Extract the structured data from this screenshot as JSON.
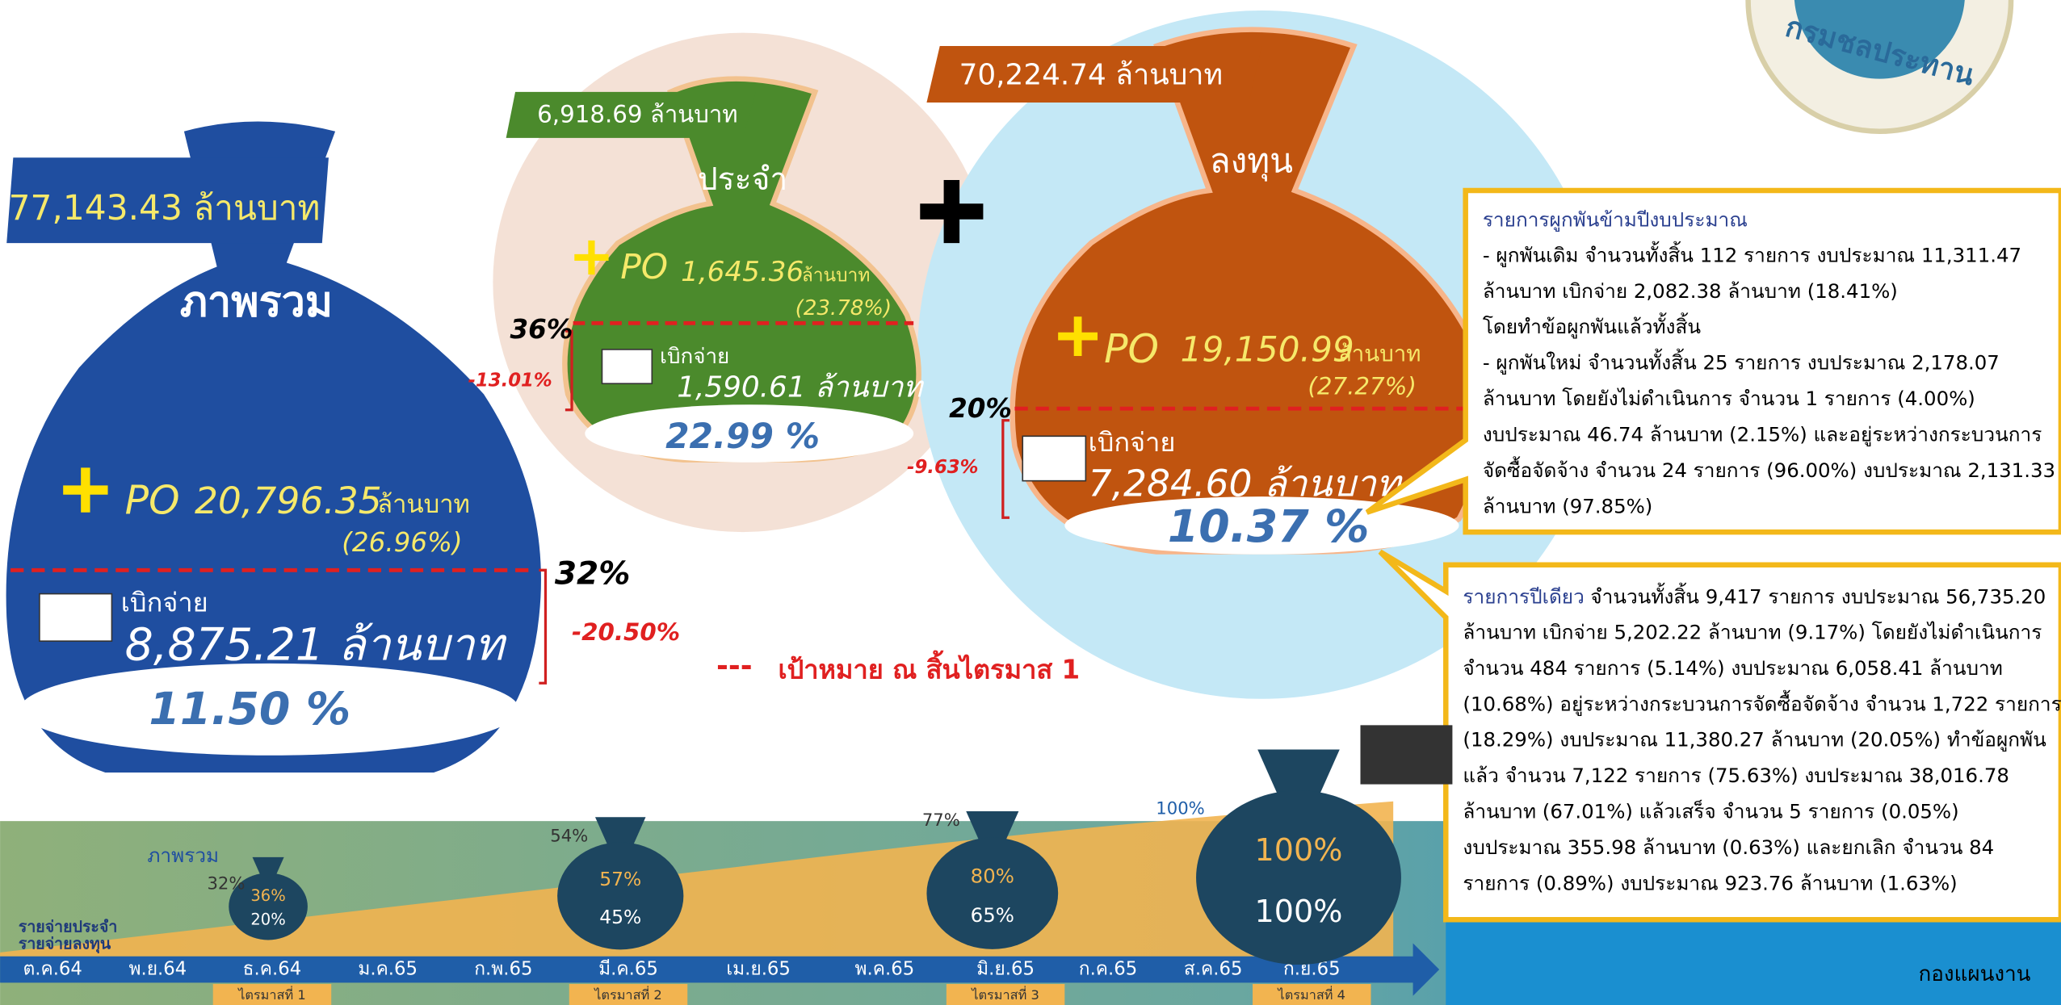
{
  "logo_text": "กรมชลประทาน",
  "overall": {
    "amount": "77,143.43 ล้านบาท",
    "label": "ภาพรวม",
    "po": "PO",
    "po_amount": "20,796.35",
    "po_unit": "ล้านบาท",
    "po_pct": "(26.96%)",
    "disburse_label": "เบิกจ่าย",
    "disburse_amount": "8,875.21 ล้านบาท",
    "disburse_pct": "11.50 %",
    "target": "32%",
    "gap": "-20.50%"
  },
  "regular": {
    "amount": "6,918.69  ล้านบาท",
    "label": "ประจำ",
    "po": "PO",
    "po_amount": "1,645.36",
    "po_unit": "ล้านบาท",
    "po_pct": "(23.78%)",
    "disburse_label": "เบิกจ่าย",
    "disburse_amount": "1,590.61 ล้านบาท",
    "disburse_pct": "22.99 %",
    "target": "36%",
    "gap": "-13.01%"
  },
  "investment": {
    "amount": "70,224.74 ล้านบาท",
    "label": "ลงทุน",
    "po": "PO",
    "po_amount": "19,150.99",
    "po_unit": "ล้านบาท",
    "po_pct": "(27.27%)",
    "disburse_label": "เบิกจ่าย",
    "disburse_amount": "7,284.60 ล้านบาท",
    "disburse_pct": "10.37 %",
    "target": "20%",
    "gap": "-9.63%"
  },
  "legend": {
    "symbol": "---",
    "text": "เป้าหมาย ณ สิ้นไตรมาส 1"
  },
  "note_multi_year": {
    "title": "รายการผูกพันข้ามปีงบประมาณ",
    "lines": [
      "- ผูกพันเดิม จำนวนทั้งสิ้น 112 รายการ งบประมาณ 11,311.47",
      "ล้านบาท เบิกจ่าย 2,082.38 ล้านบาท (18.41%)",
      "โดยทำข้อผูกพันแล้วทั้งสิ้น",
      "- ผูกพันใหม่ จำนวนทั้งสิ้น 25 รายการ งบประมาณ 2,178.07",
      "ล้านบาท โดยยังไม่ดำเนินการ จำนวน 1 รายการ (4.00%)",
      "งบประมาณ 46.74 ล้านบาท (2.15%) และอยู่ระหว่างกระบวนการ",
      "จัดซื้อจัดจ้าง จำนวน 24 รายการ (96.00%) งบประมาณ 2,131.33",
      "ล้านบาท (97.85%)"
    ]
  },
  "note_single_year": {
    "title": "รายการปีเดียว",
    "first_line": "จำนวนทั้งสิ้น 9,417 รายการ งบประมาณ 56,735.20",
    "lines": [
      "ล้านบาท เบิกจ่าย 5,202.22 ล้านบาท (9.17%) โดยยังไม่ดำเนินการ",
      "จำนวน 484 รายการ (5.14%) งบประมาณ 6,058.41 ล้านบาท",
      "(10.68%) อยู่ระหว่างกระบวนการจัดซื้อจัดจ้าง จำนวน 1,722 รายการ",
      "(18.29%) งบประมาณ 11,380.27 ล้านบาท (20.05%) ทำข้อผูกพัน",
      "แล้ว จำนวน 7,122 รายการ (75.63%) งบประมาณ 38,016.78",
      "ล้านบาท (67.01%) แล้วเสร็จ จำนวน 5 รายการ (0.05%)",
      "งบประมาณ 355.98 ล้านบาท (0.63%) และยกเลิก จำนวน 84",
      "รายการ (0.89%) งบประมาณ 923.76 ล้านบาท (1.63%)"
    ]
  },
  "timeline": {
    "overall_label": "ภาพรวม",
    "legend": [
      "รายจ่ายประจำ",
      "รายจ่ายลงทุน"
    ],
    "months": [
      "ต.ค.64",
      "พ.ย.64",
      "ธ.ค.64",
      "ม.ค.65",
      "ก.พ.65",
      "มี.ค.65",
      "เม.ย.65",
      "พ.ค.65",
      "มิ.ย.65",
      "ก.ค.65",
      "ส.ค.65",
      "ก.ย.65"
    ],
    "quarters": [
      "ไตรมาสที่ 1",
      "ไตรมาสที่ 2",
      "ไตรมาสที่ 3",
      "ไตรมาสที่ 4"
    ],
    "milestones": [
      {
        "overall": "32%",
        "regular": "36%",
        "investment": "20%"
      },
      {
        "overall": "54%",
        "regular": "57%",
        "investment": "45%"
      },
      {
        "overall": "77%",
        "regular": "80%",
        "investment": "65%"
      },
      {
        "overall": "100%",
        "regular": "100%",
        "investment": "100%"
      }
    ]
  },
  "footer": "กองแผนงาน"
}
